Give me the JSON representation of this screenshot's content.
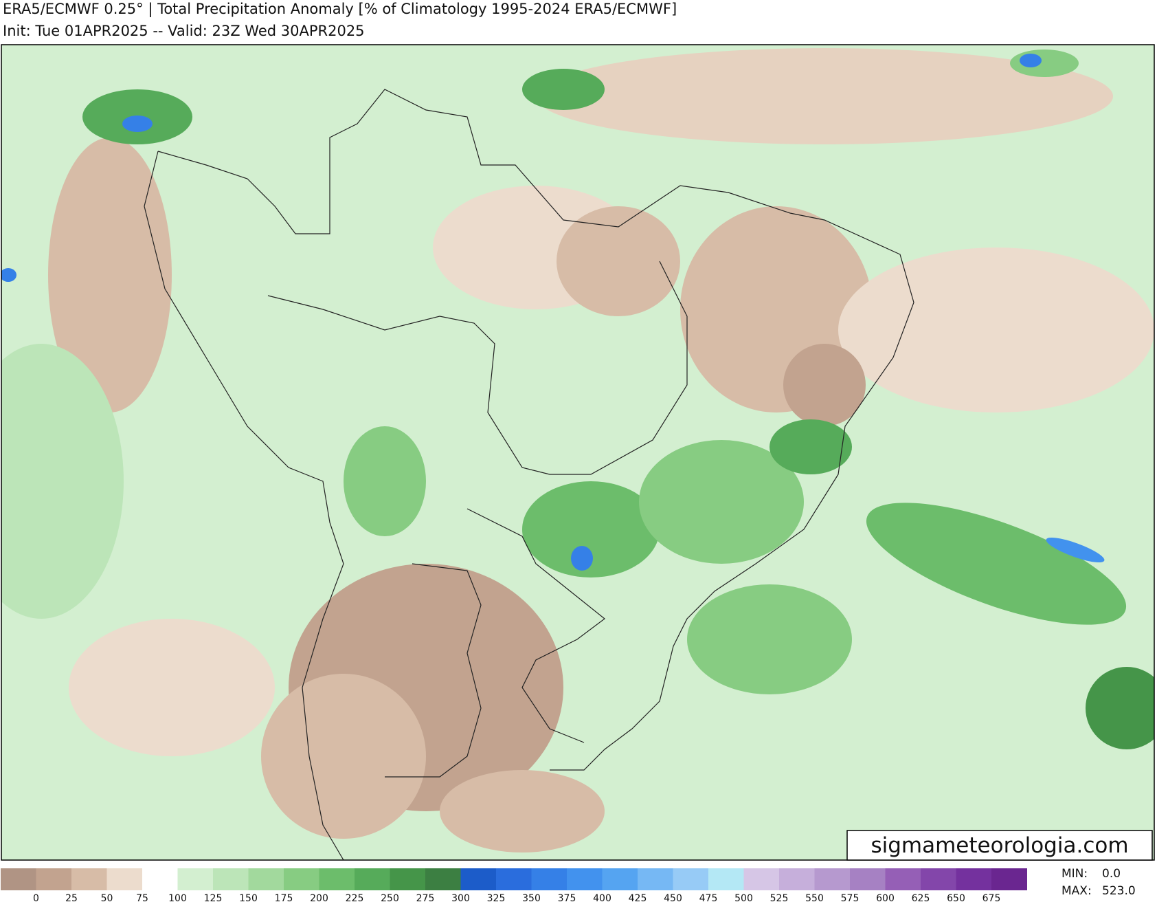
{
  "header": {
    "title": "ERA5/ECMWF 0.25° | Total Precipitation Anomaly [% of Climatology 1995-2024 ERA5/ECMWF]",
    "subtitle": "Init: Tue 01APR2025 -- Valid: 23Z Wed 30APR2025"
  },
  "watermark": "sigmameteorologia.com",
  "colorbar": {
    "ticks": [
      0,
      25,
      50,
      75,
      100,
      125,
      150,
      175,
      200,
      225,
      250,
      275,
      300,
      325,
      350,
      375,
      400,
      425,
      450,
      475,
      500,
      525,
      550,
      575,
      600,
      625,
      650,
      675
    ],
    "colors": [
      "#b09484",
      "#c2a38f",
      "#d7bca7",
      "#ecdccd",
      "#ffffff",
      "#d3efd0",
      "#bce5b8",
      "#a2d99d",
      "#87cc82",
      "#6cbd6b",
      "#56ab5a",
      "#459549",
      "#3c7f42",
      "#1c5cc9",
      "#2a6ddd",
      "#3580e7",
      "#4292ee",
      "#55a4f1",
      "#76b8f4",
      "#97cbf6",
      "#b4e8f5",
      "#d6c6e6",
      "#c6afdb",
      "#b699cf",
      "#a681c3",
      "#955fb6",
      "#8346aa",
      "#74319e",
      "#6a2690"
    ]
  },
  "stats": {
    "min_label": "MIN:",
    "min": "0.0",
    "max_label": "MAX:",
    "max": "523.0"
  }
}
